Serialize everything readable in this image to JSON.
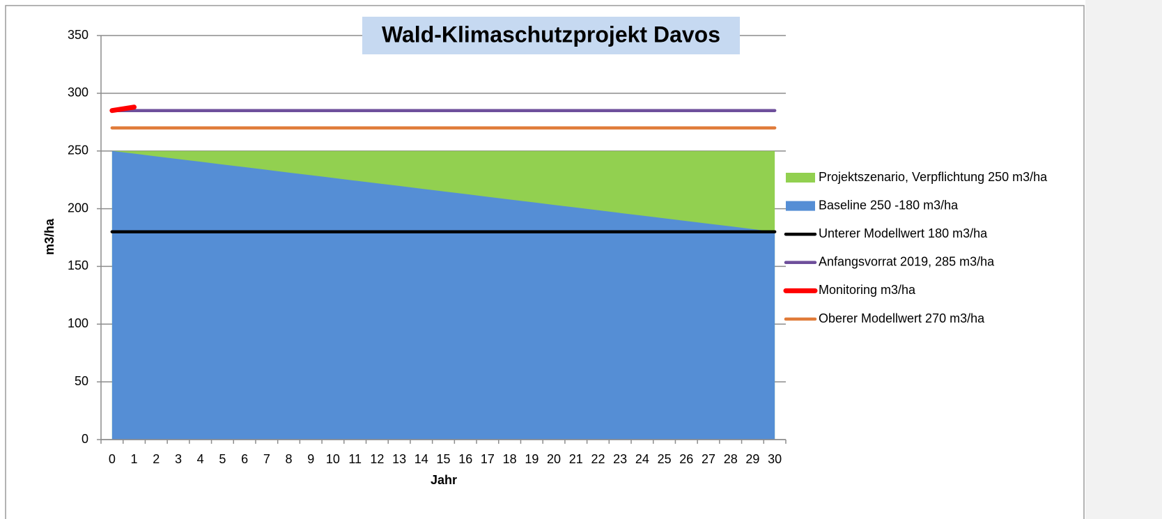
{
  "chart_data": {
    "type": "line",
    "title": "Wald-Klimaschutzprojekt Davos",
    "x_label": "Jahr",
    "y_label": "m3/ha",
    "categories": [
      "0",
      "1",
      "2",
      "3",
      "4",
      "5",
      "6",
      "7",
      "8",
      "9",
      "10",
      "11",
      "12",
      "13",
      "14",
      "15",
      "16",
      "17",
      "18",
      "19",
      "20",
      "21",
      "22",
      "23",
      "24",
      "25",
      "26",
      "27",
      "28",
      "29",
      "30"
    ],
    "ylim": [
      0,
      350
    ],
    "yticks": [
      0,
      50,
      100,
      150,
      200,
      250,
      300,
      350
    ],
    "grid": true,
    "legend": "right",
    "series": [
      {
        "name": "Projektszenario, Verpflichtung 250 m3/ha",
        "type": "area",
        "color": "#92d050",
        "values": [
          250,
          250,
          250,
          250,
          250,
          250,
          250,
          250,
          250,
          250,
          250,
          250,
          250,
          250,
          250,
          250,
          250,
          250,
          250,
          250,
          250,
          250,
          250,
          250,
          250,
          250,
          250,
          250,
          250,
          250,
          250
        ]
      },
      {
        "name": "Baseline 250 -180 m3/ha",
        "type": "area",
        "color": "#558ed5",
        "values": [
          250,
          247.7,
          245.3,
          243,
          240.7,
          238.3,
          236,
          233.7,
          231.3,
          229,
          226.7,
          224.3,
          222,
          219.7,
          217.3,
          215,
          212.7,
          210.3,
          208,
          205.7,
          203.3,
          201,
          198.7,
          196.3,
          194,
          191.7,
          189.3,
          187,
          184.7,
          182.3,
          180
        ]
      },
      {
        "name": "Unterer Modellwert 180 m3/ha",
        "type": "line",
        "color": "#000000",
        "values": [
          180,
          180,
          180,
          180,
          180,
          180,
          180,
          180,
          180,
          180,
          180,
          180,
          180,
          180,
          180,
          180,
          180,
          180,
          180,
          180,
          180,
          180,
          180,
          180,
          180,
          180,
          180,
          180,
          180,
          180,
          180
        ]
      },
      {
        "name": "Anfangsvorrat 2019, 285 m3/ha",
        "type": "line",
        "color": "#6e4f9b",
        "values": [
          285,
          285,
          285,
          285,
          285,
          285,
          285,
          285,
          285,
          285,
          285,
          285,
          285,
          285,
          285,
          285,
          285,
          285,
          285,
          285,
          285,
          285,
          285,
          285,
          285,
          285,
          285,
          285,
          285,
          285,
          285
        ]
      },
      {
        "name": "Monitoring m3/ha",
        "type": "line",
        "color": "#ff0000",
        "values": [
          285,
          288,
          null,
          null,
          null,
          null,
          null,
          null,
          null,
          null,
          null,
          null,
          null,
          null,
          null,
          null,
          null,
          null,
          null,
          null,
          null,
          null,
          null,
          null,
          null,
          null,
          null,
          null,
          null,
          null,
          null
        ]
      },
      {
        "name": "Oberer Modellwert 270 m3/ha",
        "type": "line",
        "color": "#e07b39",
        "values": [
          270,
          270,
          270,
          270,
          270,
          270,
          270,
          270,
          270,
          270,
          270,
          270,
          270,
          270,
          270,
          270,
          270,
          270,
          270,
          270,
          270,
          270,
          270,
          270,
          270,
          270,
          270,
          270,
          270,
          270,
          270
        ]
      }
    ]
  }
}
